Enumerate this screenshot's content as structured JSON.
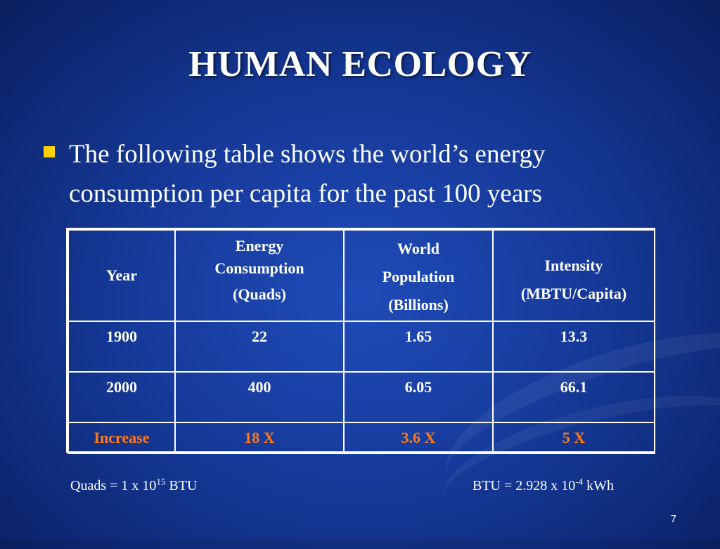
{
  "slide": {
    "title": "HUMAN ECOLOGY",
    "bullet": "The following table shows the world’s energy consumption per capita for the past 100 years",
    "page_number": "7"
  },
  "table": {
    "headers": {
      "year": [
        "Year"
      ],
      "energy": [
        "Energy",
        "Consumption",
        "(Quads)"
      ],
      "population": [
        "World",
        "Population",
        "(Billions)"
      ],
      "intensity": [
        "Intensity",
        "(MBTU/Capita)"
      ]
    },
    "rows": [
      [
        "1900",
        "22",
        "1.65",
        "13.3"
      ],
      [
        "2000",
        "400",
        "6.05",
        "66.1"
      ]
    ],
    "increase_row": [
      "Increase",
      "18 X",
      "3.6 X",
      "5 X"
    ]
  },
  "notes": {
    "left_base": "Quads = 1 x 10",
    "left_exp": "15",
    "left_unit": " BTU",
    "right_base": "BTU = 2.928 x 10",
    "right_exp": "-4",
    "right_unit": " kWh"
  },
  "colors": {
    "background": "#163a9a",
    "bullet": "#ffd200",
    "increase": "#ff7a1a",
    "text": "#ffffff"
  }
}
